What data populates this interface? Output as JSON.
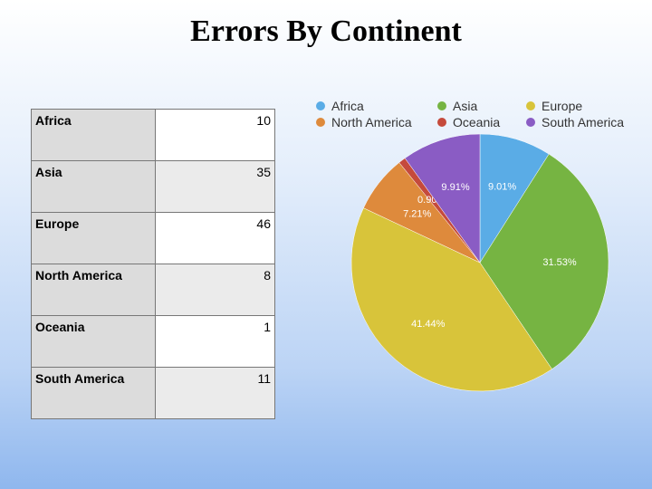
{
  "title": "Errors By Continent",
  "table": {
    "rows": [
      {
        "name": "Africa",
        "value": "10"
      },
      {
        "name": "Asia",
        "value": "35"
      },
      {
        "name": "Europe",
        "value": "46"
      },
      {
        "name": "North America",
        "value": "8"
      },
      {
        "name": "Oceania",
        "value": "1"
      },
      {
        "name": "South America",
        "value": "11"
      }
    ]
  },
  "chart_data": {
    "type": "pie",
    "categories": [
      "Africa",
      "Asia",
      "Europe",
      "North America",
      "Oceania",
      "South America"
    ],
    "values": [
      10,
      35,
      46,
      8,
      1,
      11
    ],
    "labels": [
      "9.01%",
      "31.53%",
      "41.44%",
      "7.21%",
      "0.90%",
      "9.91%"
    ],
    "colors": [
      "#5aace6",
      "#76b442",
      "#d8c43a",
      "#de8a3c",
      "#c54a3c",
      "#8a5cc4"
    ],
    "legend_position": "top"
  }
}
